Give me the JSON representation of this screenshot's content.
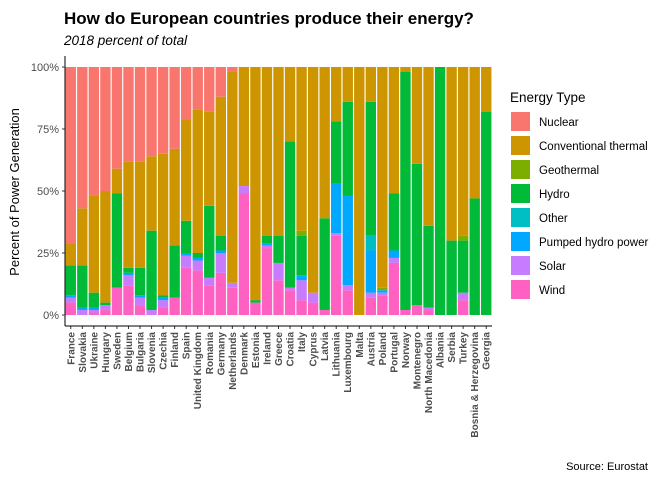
{
  "chart_data": {
    "type": "bar",
    "stacked": true,
    "title": "How do European countries produce their energy?",
    "subtitle": "2018 percent of total",
    "ylabel": "Percent of Power Generation",
    "xlabel": "",
    "caption": "Source: Eurostat",
    "ylim": [
      0,
      1
    ],
    "yticks": [
      0,
      0.25,
      0.5,
      0.75,
      1.0
    ],
    "ytick_labels": [
      "0%",
      "25%",
      "50%",
      "75%",
      "100%"
    ],
    "grid": false,
    "legend": {
      "title": "Energy Type",
      "position": "right"
    },
    "categories": [
      "France",
      "Slovakia",
      "Ukraine",
      "Hungary",
      "Sweden",
      "Belgium",
      "Bulgaria",
      "Slovenia",
      "Czechia",
      "Finland",
      "Spain",
      "United Kingdom",
      "Romania",
      "Germany",
      "Netherlands",
      "Denmark",
      "Estonia",
      "Ireland",
      "Greece",
      "Croatia",
      "Italy",
      "Cyprus",
      "Latvia",
      "Lithuania",
      "Luxembourg",
      "Malta",
      "Austria",
      "Poland",
      "Portugal",
      "Norway",
      "Montenegro",
      "North Macedonia",
      "Albania",
      "Serbia",
      "Turkey",
      "Bosnia & Herzegovina",
      "Georgia"
    ],
    "series": [
      {
        "name": "Wind",
        "color": "#FF61C3",
        "values": [
          0.05,
          0.0,
          0.01,
          0.02,
          0.11,
          0.12,
          0.04,
          0.0,
          0.03,
          0.07,
          0.19,
          0.18,
          0.12,
          0.17,
          0.11,
          0.49,
          0.05,
          0.27,
          0.14,
          0.1,
          0.06,
          0.05,
          0.02,
          0.32,
          0.1,
          0.0,
          0.07,
          0.08,
          0.21,
          0.02,
          0.04,
          0.02,
          0.0,
          0.0,
          0.06,
          0.0,
          0.0
        ]
      },
      {
        "name": "Solar",
        "color": "#C77CFF",
        "values": [
          0.02,
          0.02,
          0.01,
          0.02,
          0.0,
          0.04,
          0.03,
          0.02,
          0.03,
          0.0,
          0.05,
          0.04,
          0.03,
          0.08,
          0.02,
          0.03,
          0.0,
          0.01,
          0.07,
          0.01,
          0.08,
          0.04,
          0.0,
          0.01,
          0.02,
          0.0,
          0.02,
          0.01,
          0.02,
          0.0,
          0.0,
          0.01,
          0.0,
          0.0,
          0.03,
          0.0,
          0.0
        ]
      },
      {
        "name": "Pumped hydro power",
        "color": "#00A9FF",
        "values": [
          0.01,
          0.01,
          0.01,
          0.0,
          0.0,
          0.01,
          0.01,
          0.0,
          0.01,
          0.0,
          0.01,
          0.01,
          0.0,
          0.01,
          0.0,
          0.0,
          0.0,
          0.01,
          0.0,
          0.0,
          0.02,
          0.0,
          0.0,
          0.2,
          0.36,
          0.0,
          0.17,
          0.01,
          0.03,
          0.0,
          0.0,
          0.0,
          0.0,
          0.0,
          0.0,
          0.0,
          0.0
        ]
      },
      {
        "name": "Other",
        "color": "#00BFC4",
        "values": [
          0.0,
          0.0,
          0.0,
          0.0,
          0.0,
          0.0,
          0.0,
          0.0,
          0.0,
          0.0,
          0.0,
          0.0,
          0.0,
          0.0,
          0.0,
          0.0,
          0.0,
          0.0,
          0.0,
          0.0,
          0.0,
          0.0,
          0.0,
          0.0,
          0.0,
          0.0,
          0.06,
          0.0,
          0.0,
          0.0,
          0.0,
          0.0,
          0.0,
          0.0,
          0.0,
          0.0,
          0.0
        ]
      },
      {
        "name": "Hydro",
        "color": "#00BA38",
        "values": [
          0.12,
          0.17,
          0.06,
          0.01,
          0.38,
          0.02,
          0.11,
          0.32,
          0.01,
          0.21,
          0.13,
          0.02,
          0.29,
          0.06,
          0.0,
          0.0,
          0.01,
          0.03,
          0.11,
          0.59,
          0.16,
          0.0,
          0.37,
          0.25,
          0.38,
          0.0,
          0.54,
          0.0,
          0.23,
          0.95,
          0.57,
          0.33,
          1.0,
          0.3,
          0.21,
          0.47,
          0.82
        ]
      },
      {
        "name": "Geothermal",
        "color": "#7CAE00",
        "values": [
          0.0,
          0.0,
          0.0,
          0.0,
          0.0,
          0.0,
          0.0,
          0.0,
          0.0,
          0.0,
          0.0,
          0.0,
          0.0,
          0.0,
          0.0,
          0.0,
          0.0,
          0.0,
          0.0,
          0.0,
          0.02,
          0.0,
          0.0,
          0.0,
          0.0,
          0.0,
          0.0,
          0.01,
          0.0,
          0.0,
          0.0,
          0.0,
          0.0,
          0.0,
          0.02,
          0.0,
          0.0
        ]
      },
      {
        "name": "Conventional thermal",
        "color": "#CD9600",
        "values": [
          0.09,
          0.23,
          0.39,
          0.45,
          0.1,
          0.43,
          0.43,
          0.3,
          0.57,
          0.39,
          0.41,
          0.58,
          0.38,
          0.56,
          0.85,
          0.48,
          0.94,
          0.68,
          0.68,
          0.3,
          0.66,
          0.91,
          0.61,
          0.22,
          0.14,
          1.0,
          0.14,
          0.89,
          0.51,
          0.02,
          0.39,
          0.64,
          0.0,
          0.7,
          0.68,
          0.53,
          0.18
        ]
      },
      {
        "name": "Nuclear",
        "color": "#F8766D",
        "values": [
          0.71,
          0.57,
          0.52,
          0.5,
          0.41,
          0.38,
          0.38,
          0.36,
          0.35,
          0.33,
          0.21,
          0.17,
          0.18,
          0.12,
          0.02,
          0.0,
          0.0,
          0.0,
          0.0,
          0.0,
          0.0,
          0.0,
          0.0,
          0.0,
          0.0,
          0.0,
          0.0,
          0.0,
          0.0,
          0.0,
          0.0,
          0.0,
          0.0,
          0.0,
          0.0,
          0.0,
          0.0
        ]
      }
    ],
    "legend_order": [
      "Nuclear",
      "Conventional thermal",
      "Geothermal",
      "Hydro",
      "Other",
      "Pumped hydro power",
      "Solar",
      "Wind"
    ]
  }
}
